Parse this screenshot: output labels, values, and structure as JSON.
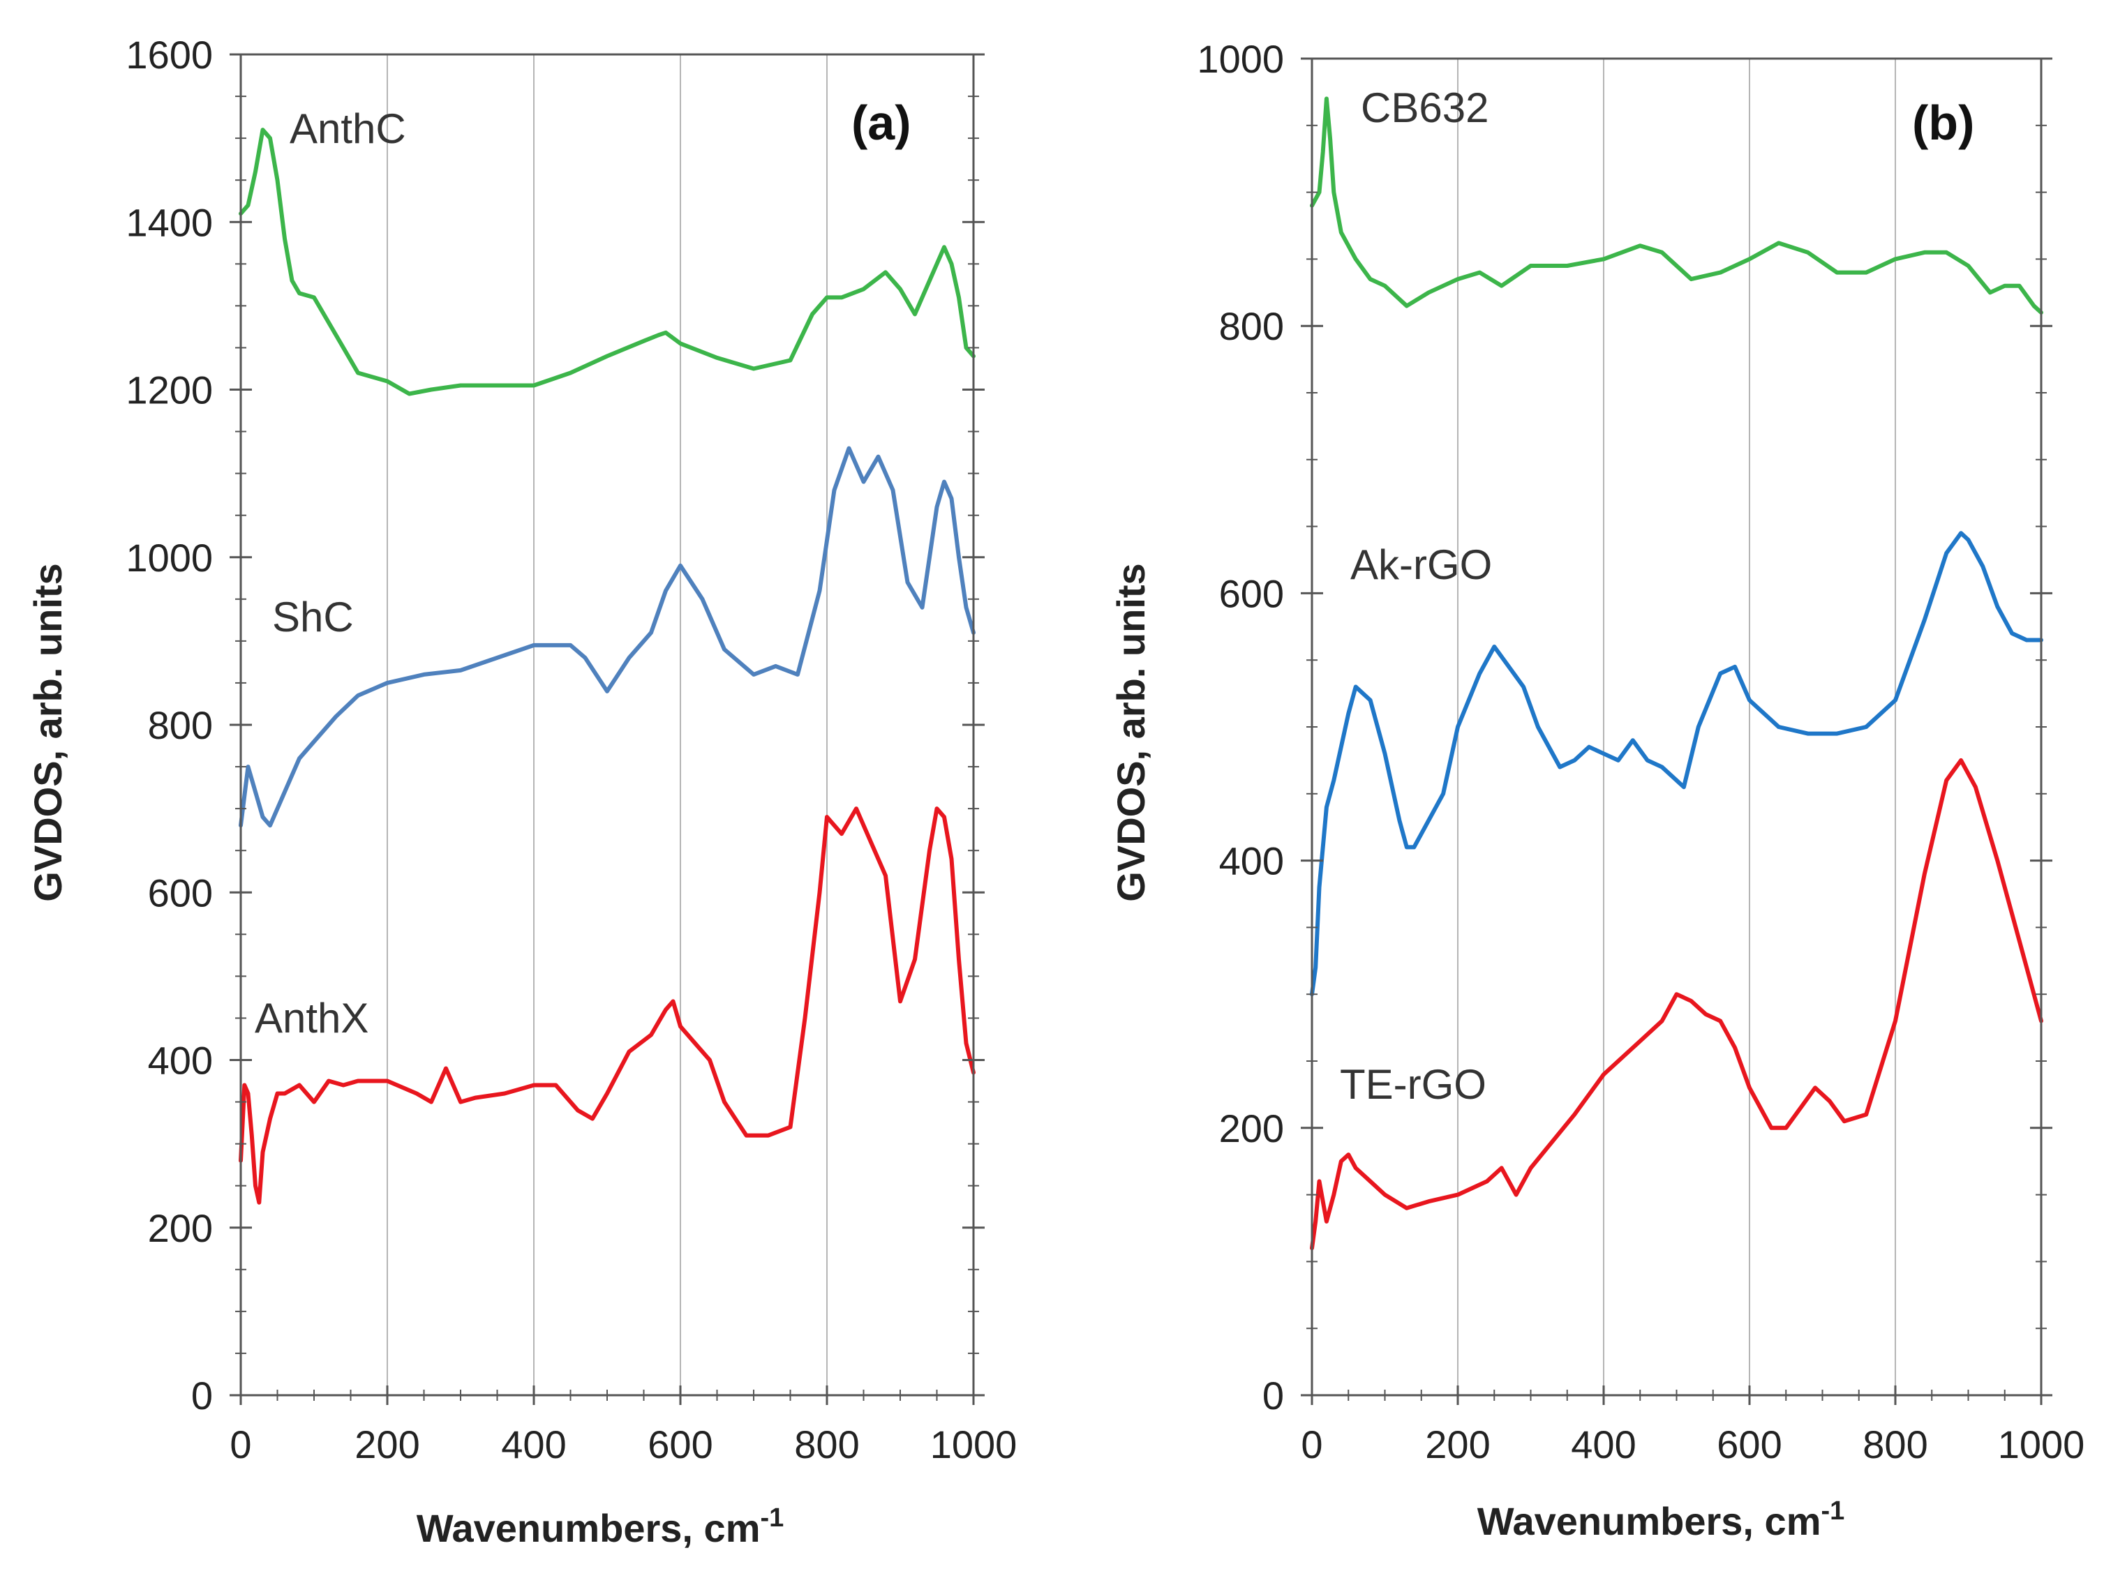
{
  "chart_data": [
    {
      "type": "line",
      "panel_label": "(a)",
      "xlabel": "Wavenumbers, cm",
      "xlabel_sup": "-1",
      "ylabel": "GVDOS, arb. units",
      "xlim": [
        0,
        1000
      ],
      "ylim": [
        0,
        1600
      ],
      "xticks": [
        "0",
        "200",
        "400",
        "600",
        "800",
        "1000"
      ],
      "yticks": [
        "0",
        "200",
        "400",
        "600",
        "800",
        "1000",
        "1200",
        "1400",
        "1600"
      ],
      "grid": "vertical",
      "series": [
        {
          "name": "AnthC",
          "color": "#3cb54a",
          "x": [
            0,
            10,
            20,
            30,
            40,
            50,
            60,
            70,
            80,
            100,
            120,
            140,
            160,
            180,
            200,
            230,
            260,
            300,
            350,
            400,
            450,
            500,
            550,
            570,
            580,
            600,
            650,
            700,
            750,
            780,
            800,
            820,
            850,
            880,
            900,
            920,
            950,
            960,
            970,
            980,
            990,
            1000
          ],
          "y": [
            1410,
            1420,
            1460,
            1510,
            1500,
            1450,
            1380,
            1330,
            1315,
            1310,
            1280,
            1250,
            1220,
            1215,
            1210,
            1195,
            1200,
            1205,
            1205,
            1205,
            1220,
            1240,
            1258,
            1265,
            1268,
            1255,
            1238,
            1225,
            1235,
            1290,
            1310,
            1310,
            1320,
            1340,
            1320,
            1290,
            1350,
            1370,
            1350,
            1310,
            1250,
            1240
          ]
        },
        {
          "name": "ShC",
          "color": "#4f81bd",
          "x": [
            0,
            10,
            20,
            30,
            40,
            60,
            80,
            100,
            130,
            160,
            200,
            250,
            300,
            350,
            400,
            450,
            470,
            500,
            530,
            560,
            580,
            600,
            630,
            660,
            700,
            730,
            760,
            790,
            810,
            830,
            850,
            870,
            890,
            910,
            930,
            950,
            960,
            970,
            980,
            990,
            1000
          ],
          "y": [
            680,
            750,
            720,
            690,
            680,
            720,
            760,
            780,
            810,
            835,
            850,
            860,
            865,
            880,
            895,
            895,
            880,
            840,
            880,
            910,
            960,
            990,
            950,
            890,
            860,
            870,
            860,
            960,
            1080,
            1130,
            1090,
            1120,
            1080,
            970,
            940,
            1060,
            1090,
            1070,
            1000,
            940,
            910
          ]
        },
        {
          "name": "AnthX",
          "color": "#e8161e",
          "x": [
            0,
            5,
            10,
            15,
            20,
            25,
            30,
            40,
            50,
            60,
            80,
            100,
            120,
            140,
            160,
            200,
            240,
            260,
            280,
            300,
            320,
            360,
            400,
            430,
            460,
            480,
            500,
            530,
            560,
            580,
            590,
            600,
            620,
            640,
            660,
            690,
            720,
            750,
            770,
            790,
            800,
            820,
            840,
            860,
            880,
            900,
            920,
            940,
            950,
            960,
            970,
            980,
            990,
            1000
          ],
          "y": [
            280,
            370,
            360,
            310,
            250,
            230,
            290,
            330,
            360,
            360,
            370,
            350,
            375,
            370,
            375,
            375,
            360,
            350,
            390,
            350,
            355,
            360,
            370,
            370,
            340,
            330,
            360,
            410,
            430,
            460,
            470,
            440,
            420,
            400,
            350,
            310,
            310,
            320,
            450,
            600,
            690,
            670,
            700,
            660,
            620,
            470,
            520,
            650,
            700,
            690,
            640,
            520,
            420,
            385
          ]
        }
      ]
    },
    {
      "type": "line",
      "panel_label": "(b)",
      "xlabel": "Wavenumbers,  cm",
      "xlabel_sup": "-1",
      "ylabel": "GVDOS, arb. units",
      "xlim": [
        0,
        1000
      ],
      "ylim": [
        0,
        1000
      ],
      "xticks": [
        "0",
        "200",
        "400",
        "600",
        "800",
        "1000"
      ],
      "yticks": [
        "0",
        "200",
        "400",
        "600",
        "800",
        "1000"
      ],
      "grid": "vertical",
      "series": [
        {
          "name": "CB632",
          "color": "#3cb54a",
          "x": [
            0,
            10,
            15,
            20,
            25,
            30,
            40,
            60,
            80,
            100,
            130,
            160,
            180,
            200,
            230,
            260,
            300,
            350,
            400,
            450,
            480,
            520,
            560,
            600,
            640,
            680,
            720,
            760,
            800,
            840,
            870,
            900,
            930,
            950,
            970,
            990,
            1000
          ],
          "y": [
            890,
            900,
            930,
            970,
            940,
            900,
            870,
            850,
            835,
            830,
            815,
            825,
            830,
            835,
            840,
            830,
            845,
            845,
            850,
            860,
            855,
            835,
            840,
            850,
            862,
            855,
            840,
            840,
            850,
            855,
            855,
            845,
            825,
            830,
            830,
            815,
            810
          ]
        },
        {
          "name": "Ak-rGO",
          "color": "#1f77c8",
          "x": [
            0,
            5,
            10,
            20,
            30,
            50,
            60,
            80,
            100,
            120,
            130,
            140,
            160,
            180,
            200,
            230,
            250,
            270,
            290,
            310,
            340,
            360,
            380,
            400,
            420,
            440,
            460,
            480,
            500,
            510,
            530,
            560,
            580,
            600,
            640,
            680,
            720,
            760,
            800,
            840,
            870,
            890,
            900,
            920,
            940,
            960,
            980,
            1000
          ],
          "y": [
            300,
            320,
            380,
            440,
            460,
            510,
            530,
            520,
            480,
            430,
            410,
            410,
            430,
            450,
            500,
            540,
            560,
            545,
            530,
            500,
            470,
            475,
            485,
            480,
            475,
            490,
            475,
            470,
            460,
            455,
            500,
            540,
            545,
            520,
            500,
            495,
            495,
            500,
            520,
            580,
            630,
            645,
            640,
            620,
            590,
            570,
            565,
            565
          ]
        },
        {
          "name": "TE-rGO",
          "color": "#e8161e",
          "x": [
            0,
            5,
            10,
            20,
            30,
            40,
            50,
            60,
            80,
            100,
            130,
            160,
            200,
            240,
            260,
            270,
            280,
            300,
            330,
            360,
            400,
            450,
            480,
            500,
            520,
            540,
            560,
            580,
            600,
            630,
            650,
            670,
            690,
            710,
            730,
            760,
            800,
            840,
            870,
            890,
            910,
            940,
            970,
            1000
          ],
          "y": [
            110,
            130,
            160,
            130,
            150,
            175,
            180,
            170,
            160,
            150,
            140,
            145,
            150,
            160,
            170,
            160,
            150,
            170,
            190,
            210,
            240,
            265,
            280,
            300,
            295,
            285,
            280,
            260,
            230,
            200,
            200,
            215,
            230,
            220,
            205,
            210,
            280,
            390,
            460,
            475,
            455,
            400,
            340,
            280
          ]
        }
      ]
    }
  ]
}
